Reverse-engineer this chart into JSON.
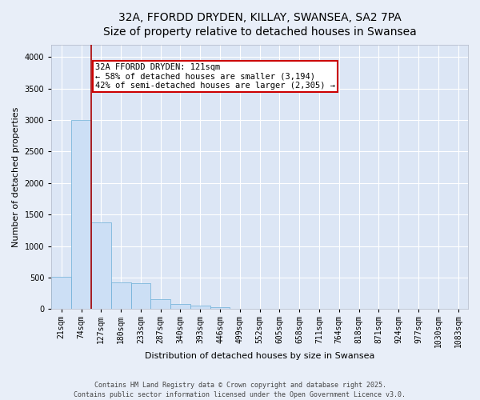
{
  "title_line1": "32A, FFORDD DRYDEN, KILLAY, SWANSEA, SA2 7PA",
  "title_line2": "Size of property relative to detached houses in Swansea",
  "xlabel": "Distribution of detached houses by size in Swansea",
  "ylabel": "Number of detached properties",
  "bar_color": "#ccdff5",
  "bar_edge_color": "#6aaed6",
  "background_color": "#e8eef8",
  "plot_bg_color": "#dce6f5",
  "grid_color": "#ffffff",
  "categories": [
    "21sqm",
    "74sqm",
    "127sqm",
    "180sqm",
    "233sqm",
    "287sqm",
    "340sqm",
    "393sqm",
    "446sqm",
    "499sqm",
    "552sqm",
    "605sqm",
    "658sqm",
    "711sqm",
    "764sqm",
    "818sqm",
    "871sqm",
    "924sqm",
    "977sqm",
    "1030sqm",
    "1083sqm"
  ],
  "values": [
    510,
    3000,
    1380,
    430,
    410,
    160,
    80,
    60,
    30,
    10,
    5,
    5,
    3,
    2,
    2,
    2,
    1,
    1,
    1,
    1,
    1
  ],
  "ylim": [
    0,
    4200
  ],
  "yticks": [
    0,
    500,
    1000,
    1500,
    2000,
    2500,
    3000,
    3500,
    4000
  ],
  "property_line_x": 2.0,
  "annotation_line1": "32A FFORDD DRYDEN: 121sqm",
  "annotation_line2": "← 58% of detached houses are smaller (3,194)",
  "annotation_line3": "42% of semi-detached houses are larger (2,305) →",
  "annotation_box_color": "#ffffff",
  "annotation_box_edge": "#cc0000",
  "vline_color": "#aa0000",
  "footer_line1": "Contains HM Land Registry data © Crown copyright and database right 2025.",
  "footer_line2": "Contains public sector information licensed under the Open Government Licence v3.0.",
  "title_fontsize": 10,
  "axis_label_fontsize": 8,
  "tick_fontsize": 7,
  "annotation_fontsize": 7.5,
  "ylabel_fontsize": 8
}
